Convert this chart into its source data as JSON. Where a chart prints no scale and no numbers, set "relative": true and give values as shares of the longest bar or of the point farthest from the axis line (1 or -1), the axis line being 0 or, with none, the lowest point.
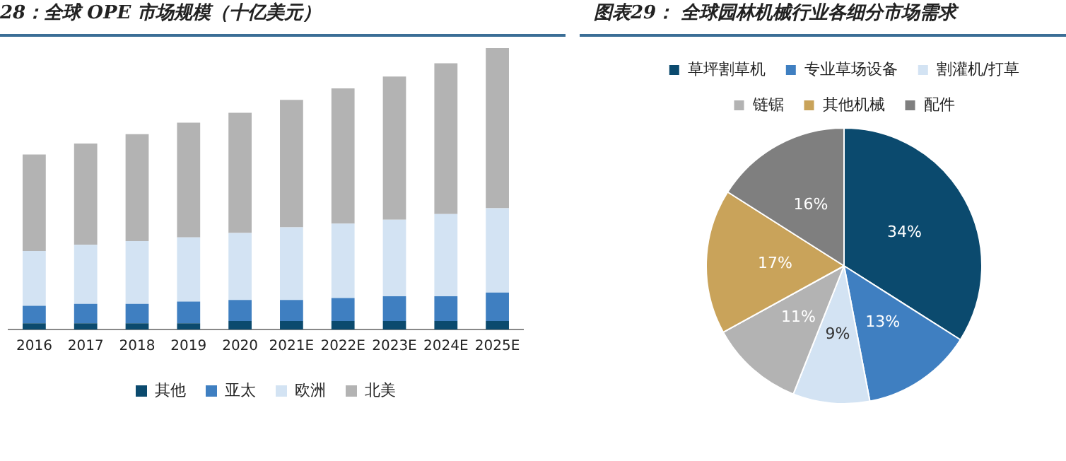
{
  "chart_data": [
    {
      "type": "bar",
      "title": "28：全球 OPE 市场规模（十亿美元）",
      "stacked": true,
      "relative": true,
      "legend": "bottom",
      "categories": [
        "2016",
        "2017",
        "2018",
        "2019",
        "2020",
        "2021E",
        "2022E",
        "2023E",
        "2024E",
        "2025E"
      ],
      "series": [
        {
          "name": "其他",
          "color": "#0b4a6e",
          "values": [
            0.022,
            0.022,
            0.022,
            0.022,
            0.03,
            0.03,
            0.03,
            0.03,
            0.03,
            0.03
          ]
        },
        {
          "name": "亚太",
          "color": "#3f7fc1",
          "values": [
            0.062,
            0.069,
            0.069,
            0.077,
            0.075,
            0.075,
            0.082,
            0.088,
            0.088,
            0.101
          ]
        },
        {
          "name": "欧洲",
          "color": "#d3e3f3",
          "values": [
            0.195,
            0.21,
            0.223,
            0.228,
            0.238,
            0.258,
            0.264,
            0.272,
            0.292,
            0.3
          ]
        },
        {
          "name": "北美",
          "color": "#b3b3b3",
          "values": [
            0.343,
            0.36,
            0.38,
            0.408,
            0.427,
            0.453,
            0.481,
            0.509,
            0.536,
            0.569
          ]
        }
      ]
    },
    {
      "type": "pie",
      "title": "图表29： 全球园林机械行业各细分市场需求",
      "legend": "top",
      "categories": [
        "草坪割草机",
        "专业草场设备",
        "割灌机/打草",
        "链锯",
        "其他机械",
        "配件"
      ],
      "values": [
        34,
        13,
        9,
        11,
        17,
        16
      ],
      "value_labels": [
        "34%",
        "13%",
        "9%",
        "11%",
        "17%",
        "16%"
      ],
      "colors": [
        "#0b4a6e",
        "#3f7fc1",
        "#d3e3f3",
        "#b3b3b3",
        "#c9a35a",
        "#7f7f7f"
      ]
    }
  ]
}
